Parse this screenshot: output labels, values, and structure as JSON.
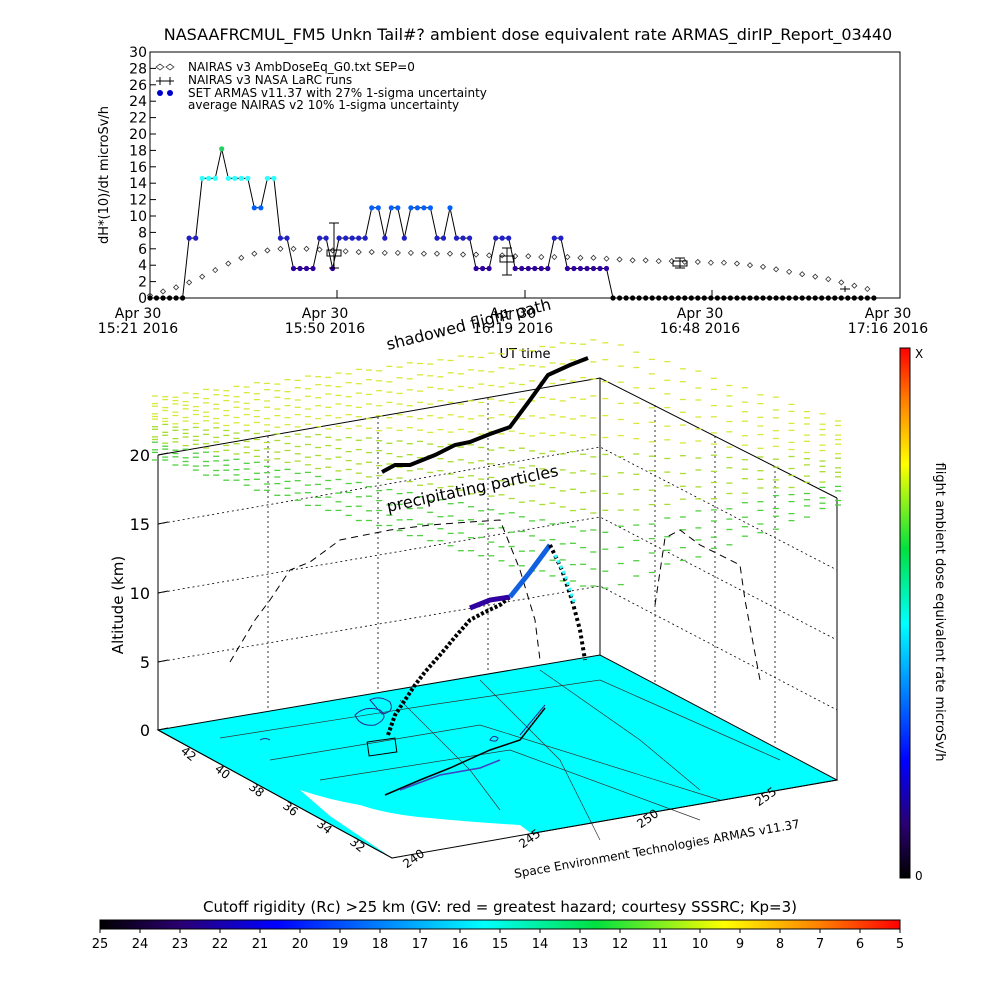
{
  "title": "NASAAFRCMUL_FM5 Unkn Tail#? ambient dose equivalent rate ARMAS_dirIP_Report_03440",
  "top_chart": {
    "ylabel": "dH*(10)/dt microSv/h",
    "xlabel": "UT time",
    "y_ticks": [
      "0",
      "2",
      "4",
      "6",
      "8",
      "10",
      "12",
      "14",
      "16",
      "18",
      "20",
      "22",
      "24",
      "26",
      "28",
      "30"
    ],
    "x_ticks": [
      {
        "date": "Apr 30",
        "time": "15:21 2016"
      },
      {
        "date": "Apr 30",
        "time": "15:50 2016"
      },
      {
        "date": "Apr 30",
        "time": "16:19 2016"
      },
      {
        "date": "Apr 30",
        "time": "16:48 2016"
      },
      {
        "date": "Apr 30",
        "time": "17:16 2016"
      }
    ],
    "legend": [
      "NAIRAS v3 AmbDoseEq_G0.txt SEP=0",
      "NAIRAS v3 NASA LaRC runs",
      "SET ARMAS v11.37 with 27% 1-sigma uncertainty",
      "average NAIRAS v2 10% 1-sigma uncertainty"
    ]
  },
  "chart_data": [
    {
      "type": "line",
      "title": "NASAAFRCMUL_FM5 Unkn Tail#? ambient dose equivalent rate ARMAS_dirIP_Report_03440",
      "xlabel": "UT time",
      "ylabel": "dH*(10)/dt microSv/h",
      "ylim": [
        0,
        30
      ],
      "x_unit": "minutes after 15:21 UT",
      "xlim": [
        0,
        115
      ],
      "series": [
        {
          "name": "SET ARMAS v11.37 with 27% 1-sigma uncertainty",
          "x": [
            0,
            1,
            2,
            3,
            4,
            5,
            6,
            7,
            8,
            9,
            10,
            11,
            12,
            13,
            14,
            15,
            16,
            17,
            18,
            19,
            20,
            21,
            22,
            23,
            24,
            25,
            26,
            27,
            28,
            29,
            30,
            31,
            32,
            33,
            34,
            35,
            36,
            37,
            38,
            39,
            40,
            41,
            42,
            43,
            44,
            45,
            46,
            47,
            48,
            49,
            50,
            51,
            52,
            53,
            54,
            55,
            56,
            57,
            58,
            59,
            60,
            61,
            62,
            63,
            64,
            65,
            66,
            67,
            68,
            69,
            70,
            71,
            72,
            73,
            74,
            75,
            76,
            77,
            78,
            79,
            80,
            81,
            82,
            83,
            84,
            85,
            86,
            87,
            88,
            89,
            90,
            91,
            92,
            93,
            94,
            95,
            96,
            97,
            98,
            99,
            100,
            101,
            102,
            103,
            104,
            105,
            106,
            107,
            108,
            109,
            110,
            111
          ],
          "values": [
            0,
            0,
            0,
            0,
            0,
            0,
            7.3,
            7.3,
            14.6,
            14.6,
            14.6,
            18.2,
            14.6,
            14.6,
            14.6,
            14.6,
            11,
            11,
            14.6,
            14.6,
            7.3,
            7.3,
            3.6,
            3.6,
            3.6,
            3.6,
            7.3,
            7.3,
            3.6,
            7.3,
            7.3,
            7.3,
            7.3,
            7.3,
            11,
            11,
            7.3,
            11,
            11,
            7.3,
            11,
            11,
            11,
            11,
            7.3,
            7.3,
            11,
            7.3,
            7.3,
            7.3,
            3.6,
            3.6,
            3.6,
            7.3,
            7.3,
            7.3,
            3.6,
            3.6,
            3.6,
            3.6,
            3.6,
            3.6,
            7.3,
            7.3,
            3.6,
            3.6,
            3.6,
            3.6,
            3.6,
            3.6,
            3.6,
            0,
            0,
            0,
            0,
            0,
            0,
            0,
            0,
            0,
            0,
            0,
            0,
            0,
            0,
            0,
            0,
            0,
            0,
            0,
            0,
            0,
            0,
            0,
            0,
            0,
            0,
            0,
            0,
            0,
            0,
            0,
            0,
            0,
            0,
            0,
            0,
            0,
            0,
            0,
            0,
            0
          ]
        },
        {
          "name": "NAIRAS v3 AmbDoseEq_G0.txt SEP=0",
          "x": [
            0,
            2,
            4,
            6,
            8,
            10,
            12,
            14,
            16,
            18,
            20,
            22,
            24,
            26,
            28,
            30,
            32,
            34,
            36,
            38,
            40,
            42,
            44,
            46,
            48,
            50,
            52,
            54,
            56,
            58,
            60,
            62,
            64,
            66,
            68,
            70,
            72,
            74,
            76,
            78,
            80,
            82,
            84,
            86,
            88,
            90,
            92,
            94,
            96,
            98,
            100,
            102,
            104,
            106,
            108,
            110
          ],
          "values": [
            0.3,
            0.8,
            1.3,
            1.9,
            2.6,
            3.4,
            4.2,
            4.9,
            5.4,
            5.8,
            6,
            6,
            6,
            5.9,
            5.8,
            5.7,
            5.6,
            5.6,
            5.5,
            5.5,
            5.5,
            5.4,
            5.4,
            5.4,
            5.3,
            5.3,
            5.2,
            5.2,
            5.1,
            5.1,
            5,
            5,
            5,
            4.9,
            4.9,
            4.8,
            4.7,
            4.6,
            4.6,
            4.5,
            4.5,
            4.4,
            4.4,
            4.3,
            4.3,
            4.2,
            4,
            3.8,
            3.5,
            3.2,
            2.9,
            2.6,
            2.3,
            1.9,
            1.5,
            1.1
          ]
        }
      ]
    },
    {
      "type": "scatter",
      "xlabel": "",
      "ylabel": "Altitude (km)",
      "z_ticks": [
        "0",
        "5",
        "10",
        "15",
        "20"
      ],
      "lon_ticks": [
        "240",
        "245",
        "250",
        "255"
      ],
      "lat_ticks": [
        "32",
        "34",
        "36",
        "38",
        "40",
        "42"
      ]
    }
  ],
  "three_d": {
    "zlabel": "Altitude (km)",
    "label_shadow": "shadowed flight path",
    "label_precip": "precipitating particles",
    "credit": "Space Environment Technologies ARMAS v11.37",
    "z_ticks": [
      "0",
      "5",
      "10",
      "15",
      "20"
    ],
    "lon_ticks": [
      "240",
      "245",
      "250",
      "255"
    ],
    "lat_ticks": [
      "32",
      "34",
      "36",
      "38",
      "40",
      "42"
    ]
  },
  "right_bar": {
    "label": "flight ambient dose equivalent rate microSv/h",
    "top": "X",
    "bottom": "0"
  },
  "bottom_bar": {
    "title": "Cutoff rigidity (Rc) >25 km (GV: red = greatest hazard; courtesy SSSRC; Kp=3)",
    "ticks": [
      "25",
      "24",
      "23",
      "22",
      "21",
      "20",
      "19",
      "18",
      "17",
      "16",
      "15",
      "14",
      "13",
      "12",
      "11",
      "10",
      "9",
      "8",
      "7",
      "6",
      "5"
    ]
  },
  "colors": {
    "map_fill": "#00ffff",
    "armas_low": "#3000a0",
    "armas_mid": "#0060ff",
    "armas_high": "#30ffff",
    "armas_peak": "#20d060"
  }
}
